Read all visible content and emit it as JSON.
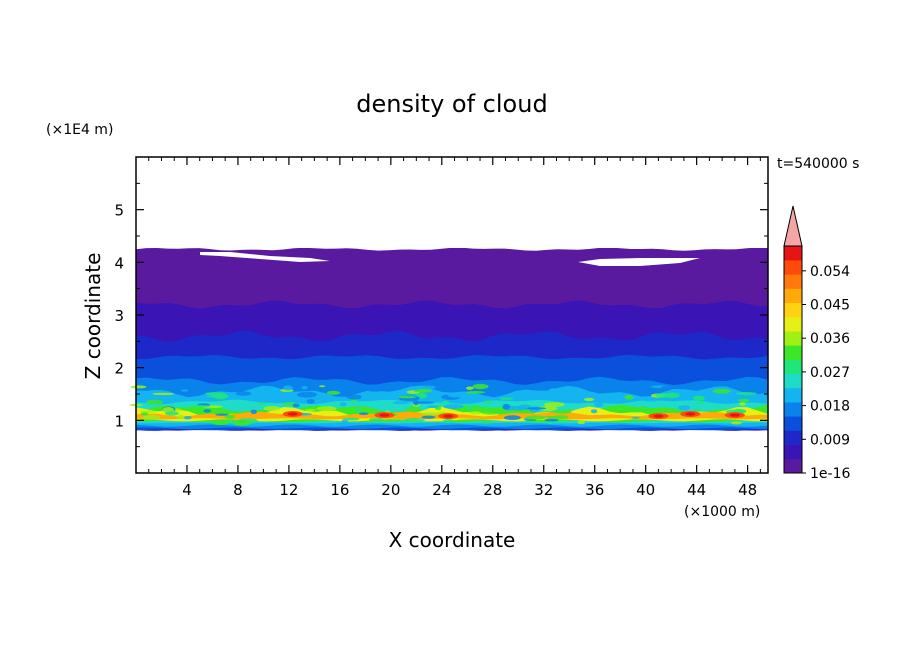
{
  "chart_data": {
    "type": "heatmap",
    "title": "density of cloud",
    "xlabel": "X coordinate",
    "ylabel": "Z coordinate",
    "x_unit": "(×1000 m)",
    "y_unit": "(×1E4 m)",
    "time_label": "t=540000 s",
    "xlim": [
      0,
      49.6
    ],
    "ylim": [
      0,
      6
    ],
    "x_ticks": [
      4,
      8,
      12,
      16,
      20,
      24,
      28,
      32,
      36,
      40,
      44,
      48
    ],
    "x_tick_labels": [
      "4",
      "8",
      "12",
      "16",
      "20",
      "24",
      "28",
      "32",
      "36",
      "40",
      "44",
      "48"
    ],
    "y_ticks": [
      1,
      2,
      3,
      4,
      5
    ],
    "y_tick_labels": [
      "1",
      "2",
      "3",
      "4",
      "5"
    ],
    "colorbar": {
      "tick_labels": [
        "1e-16",
        "0.009",
        "0.018",
        "0.027",
        "0.036",
        "0.045",
        "0.054"
      ],
      "colors": [
        "#5a1aa0",
        "#3a14b4",
        "#1e28c8",
        "#0a50dc",
        "#0a82ec",
        "#14b4f0",
        "#1edcc8",
        "#1ee678",
        "#3ce628",
        "#a0f014",
        "#e6f014",
        "#ffd214",
        "#ffaa0a",
        "#ff7a0a",
        "#ff4a0a",
        "#e61414"
      ],
      "extend_max_color": "#f4a6a6"
    },
    "bands": [
      {
        "z_bottom": 0.82,
        "z_top": 4.25,
        "value": 0.001,
        "color": "#5a1aa0"
      },
      {
        "z_bottom": 0.82,
        "z_top": 3.2,
        "value": 0.004,
        "color": "#3a14b4"
      },
      {
        "z_bottom": 0.82,
        "z_top": 2.6,
        "value": 0.008,
        "color": "#1e28c8"
      },
      {
        "z_bottom": 0.82,
        "z_top": 2.2,
        "value": 0.012,
        "color": "#0a50dc"
      },
      {
        "z_bottom": 0.85,
        "z_top": 1.75,
        "value": 0.016,
        "color": "#0a82ec"
      },
      {
        "z_bottom": 0.9,
        "z_top": 1.55,
        "value": 0.02,
        "color": "#14b4f0"
      },
      {
        "z_bottom": 0.95,
        "z_top": 1.35,
        "value": 0.026,
        "color": "#1edcc8"
      },
      {
        "z_bottom": 0.98,
        "z_top": 1.22,
        "value": 0.033,
        "color": "#3ce628"
      },
      {
        "z_bottom": 1.0,
        "z_top": 1.15,
        "value": 0.04,
        "color": "#e6f014"
      },
      {
        "z_bottom": 1.03,
        "z_top": 1.12,
        "value": 0.048,
        "color": "#ffaa0a"
      }
    ],
    "hot_spots": [
      {
        "x": 12.3,
        "z": 1.12,
        "value": 0.054
      },
      {
        "x": 19.5,
        "z": 1.1,
        "value": 0.05
      },
      {
        "x": 24.5,
        "z": 1.08,
        "value": 0.051
      },
      {
        "x": 41.0,
        "z": 1.08,
        "value": 0.056
      },
      {
        "x": 43.5,
        "z": 1.12,
        "value": 0.058
      },
      {
        "x": 47.0,
        "z": 1.1,
        "value": 0.054
      }
    ]
  }
}
